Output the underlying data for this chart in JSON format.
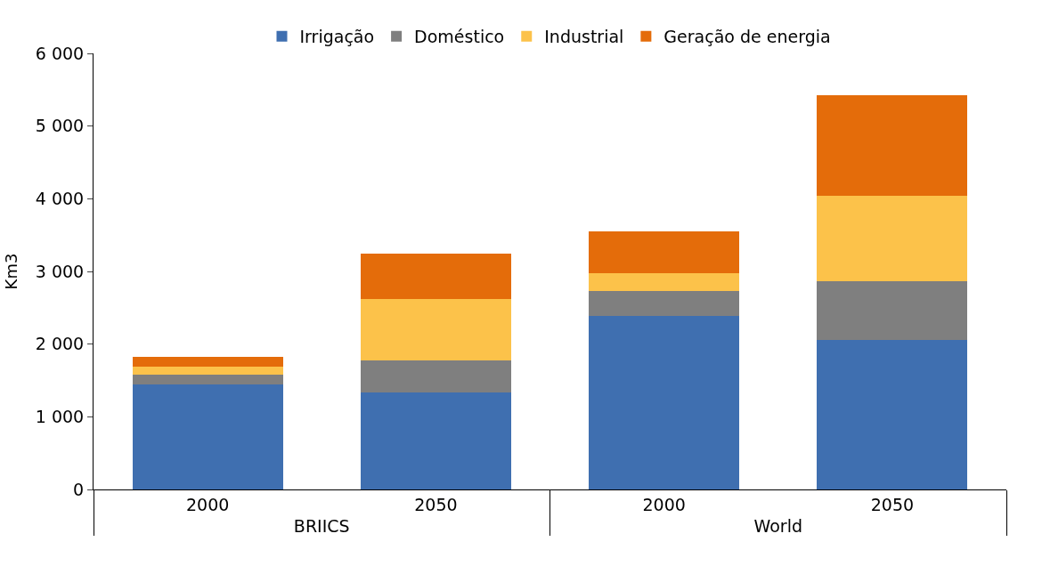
{
  "chart_data": {
    "type": "bar",
    "stacked": true,
    "ylabel": "Km3",
    "categories": [
      "2000",
      "2050",
      "2000",
      "2050"
    ],
    "annotations": [
      "BRIICS",
      "World"
    ],
    "series": [
      {
        "name": "Irrigação",
        "color": "#3f6fb0",
        "values": [
          1450,
          1330,
          2390,
          2060
        ]
      },
      {
        "name": "Doméstico",
        "color": "#7f7f7f",
        "values": [
          130,
          440,
          340,
          800
        ]
      },
      {
        "name": "Industrial",
        "color": "#fcc24a",
        "values": [
          110,
          850,
          240,
          1180
        ]
      },
      {
        "name": "Geração de energia",
        "color": "#e46c0a",
        "values": [
          130,
          630,
          580,
          1390
        ]
      }
    ],
    "ylim": [
      0,
      6000
    ],
    "yticks": [
      0,
      {
        "value": 1000,
        "label": "1 000"
      },
      {
        "value": 2000,
        "label": "2 000"
      },
      {
        "value": 3000,
        "label": "3 000"
      },
      {
        "value": 4000,
        "label": "4 000"
      },
      {
        "value": 5000,
        "label": "5 000"
      },
      {
        "value": 6000,
        "label": "6 000"
      }
    ],
    "legend": "top"
  }
}
